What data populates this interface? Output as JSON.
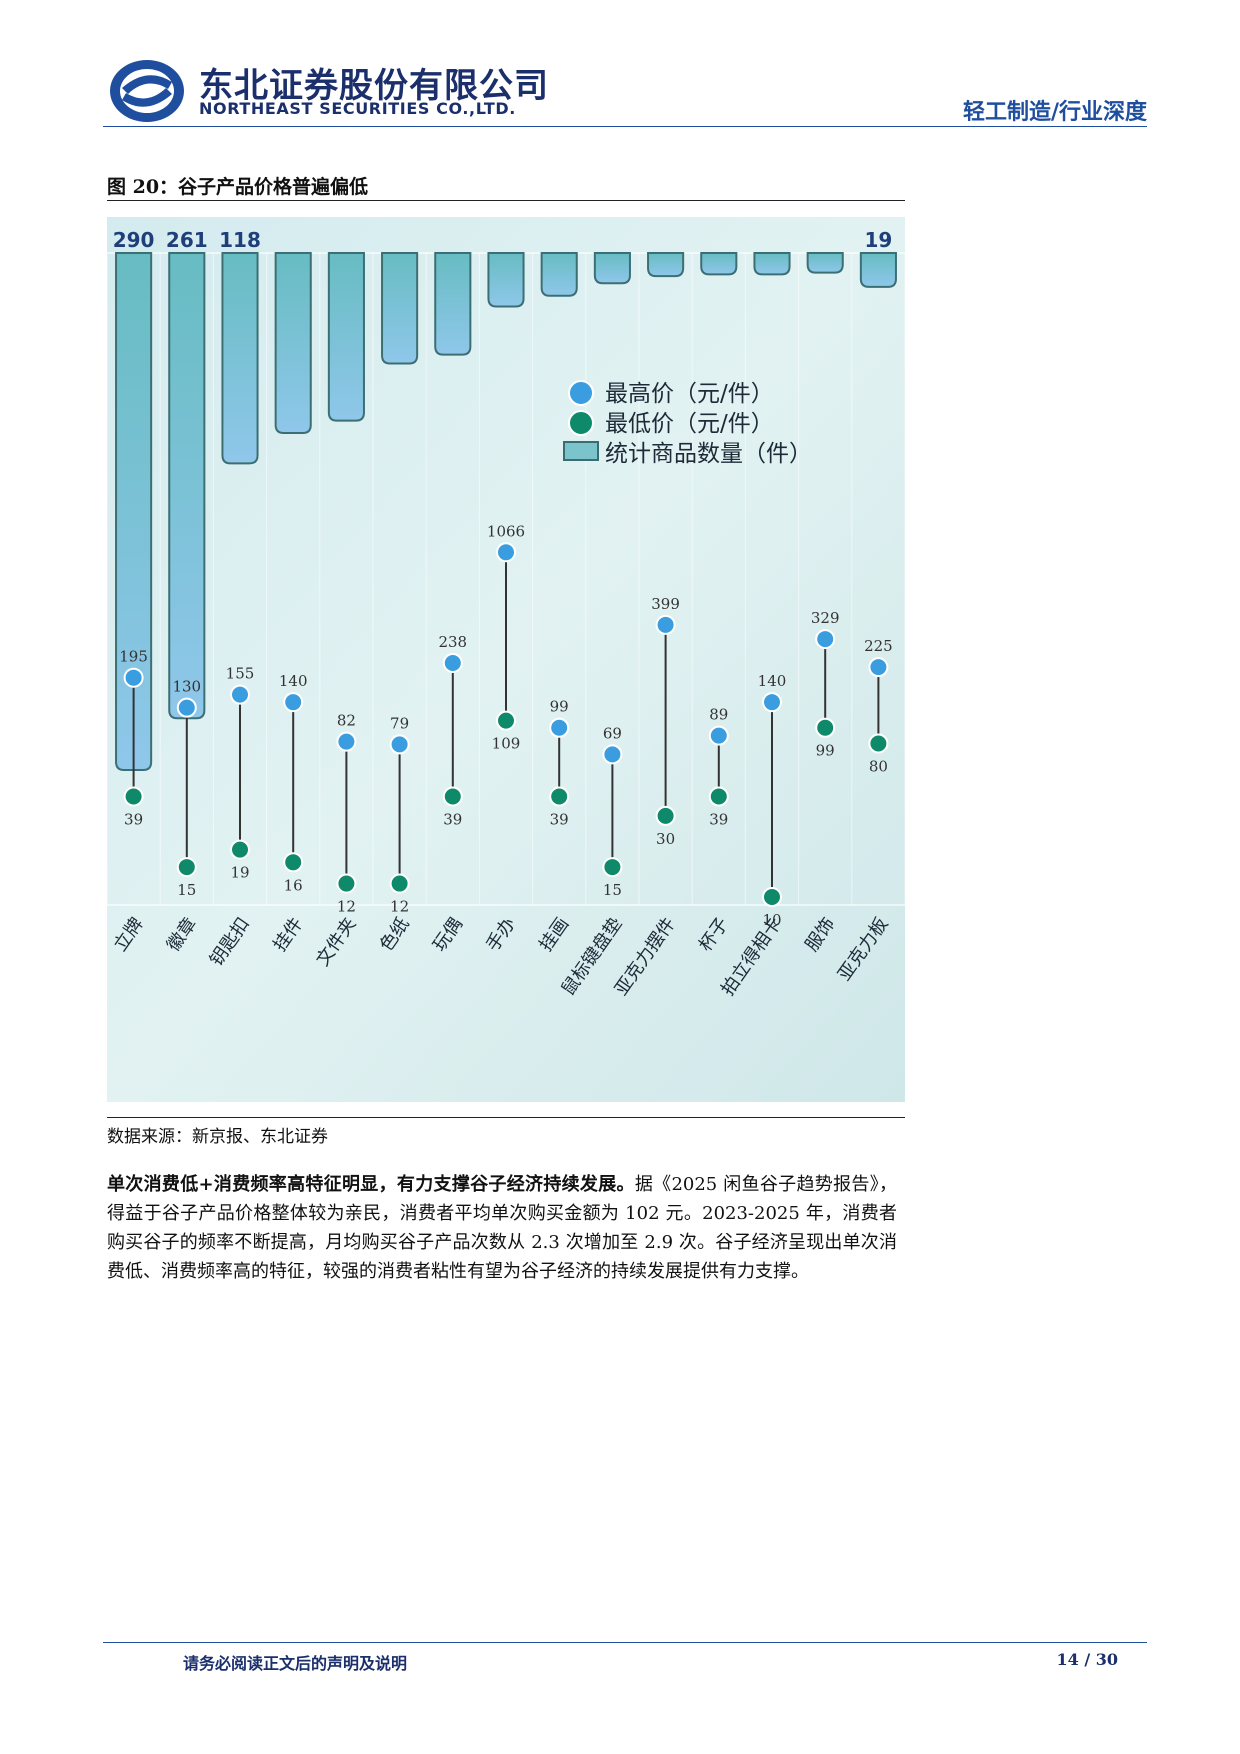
{
  "header": {
    "company_cn": "东北证券股份有限公司",
    "company_en": "NORTHEAST SECURITIES CO.,LTD.",
    "category": "轻工制造/行业深度"
  },
  "figure": {
    "title": "图 20：谷子产品价格普遍偏低",
    "source": "数据来源：新京报、东北证券"
  },
  "chart_data": {
    "type": "bar",
    "categories": [
      "立牌",
      "徽章",
      "钥匙扣",
      "挂件",
      "文件夹",
      "色纸",
      "玩偶",
      "手办",
      "挂画",
      "鼠标键盘垫",
      "亚克力摆件",
      "杯子",
      "拍立得相卡",
      "服饰",
      "亚克力板"
    ],
    "series": [
      {
        "name": "统计商品数量（件",
        "values": [
          290,
          261,
          118,
          101,
          94,
          62,
          57,
          30,
          24,
          17,
          13,
          12,
          12,
          11,
          19
        ]
      },
      {
        "name": "最高价（元/件）",
        "values": [
          195,
          130,
          155,
          140,
          82,
          79,
          238,
          1066,
          99,
          69,
          399,
          89,
          140,
          329,
          225
        ]
      },
      {
        "name": "最低价（元/件）",
        "values": [
          39,
          15,
          19,
          16,
          12,
          12,
          39,
          109,
          39,
          15,
          30,
          39,
          10,
          99,
          80
        ]
      }
    ],
    "bar_labels": {
      "0": "290",
      "1": "261",
      "2": "118",
      "14": "19"
    },
    "legend": [
      "最高价（元/件）",
      "最低价（元/件）",
      "统计商品数量（件）"
    ],
    "legend_placement": "right-middle",
    "colors": {
      "max": "#3a9de0",
      "min": "#0e8a6a",
      "bar": "#8ccfd6",
      "bar_top": "#5fb7bf"
    }
  },
  "body": {
    "bold_lead": "单次消费低+消费频率高特征明显，有力支撑谷子经济持续发展。",
    "text": "据《2025 闲鱼谷子趋势报告》，得益于谷子产品价格整体较为亲民，消费者平均单次购买金额为 102 元。2023-2025 年，消费者购买谷子的频率不断提高，月均购买谷子产品次数从 2.3 次增加至 2.9 次。谷子经济呈现出单次消费低、消费频率高的特征，较强的消费者粘性有望为谷子经济的持续发展提供有力支撑。"
  },
  "footer": {
    "disclaimer": "请务必阅读正文后的声明及说明",
    "page": "14 / 30"
  }
}
